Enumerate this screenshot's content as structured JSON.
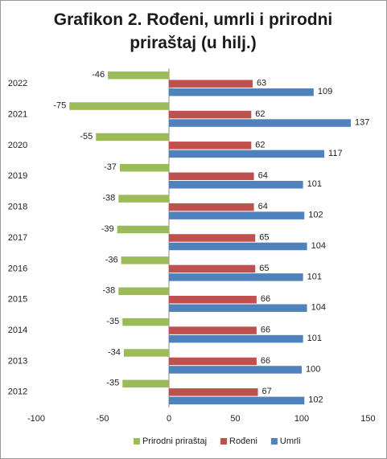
{
  "chart_data": {
    "type": "hbar",
    "title": "Grafikon 2. Rođeni, umrli i prirodni priraštaj (u hilj.)",
    "categories": [
      "2022",
      "2021",
      "2020",
      "2019",
      "2018",
      "2017",
      "2016",
      "2015",
      "2014",
      "2013",
      "2012"
    ],
    "series": [
      {
        "name": "Prirodni priraštaj",
        "color": "#9bbb59",
        "values": [
          -46,
          -75,
          -55,
          -37,
          -38,
          -39,
          -36,
          -38,
          -35,
          -34,
          -35
        ]
      },
      {
        "name": "Rođeni",
        "color": "#c0504d",
        "values": [
          63,
          62,
          62,
          64,
          64,
          65,
          65,
          66,
          66,
          66,
          67
        ]
      },
      {
        "name": "Umrli",
        "color": "#4f81bd",
        "values": [
          109,
          137,
          117,
          101,
          102,
          104,
          101,
          104,
          101,
          100,
          102
        ]
      }
    ],
    "xlim": [
      -100,
      150
    ],
    "xticks": [
      -100,
      -50,
      0,
      50,
      100,
      150
    ],
    "legend": "bottom"
  }
}
